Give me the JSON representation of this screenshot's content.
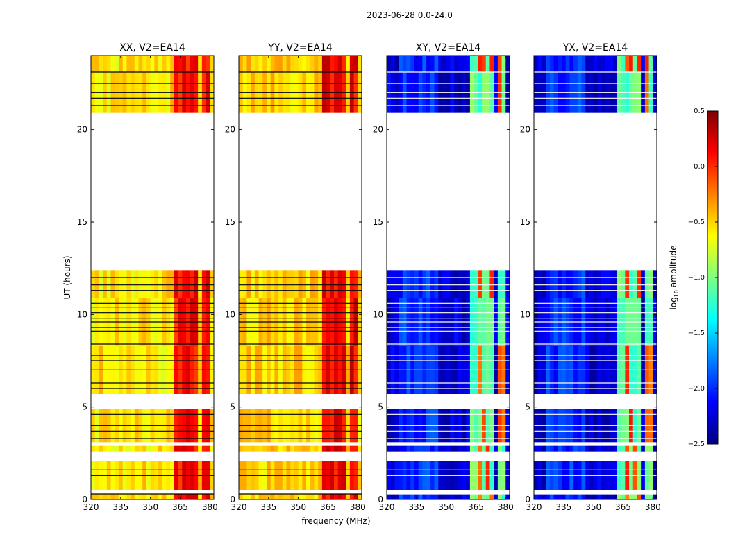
{
  "chart_data": {
    "type": "heatmap",
    "title": "2023-06-28 0.0-24.0",
    "xlabel": "frequency (MHz)",
    "ylabel": "UT (hours)",
    "xlim": [
      320,
      382
    ],
    "ylim": [
      0,
      24
    ],
    "x_ticks": [
      "320",
      "335",
      "350",
      "365",
      "380"
    ],
    "x_tick_values": [
      320,
      335,
      350,
      365,
      380
    ],
    "y_ticks": [
      "0",
      "5",
      "10",
      "15",
      "20"
    ],
    "y_tick_values": [
      0,
      5,
      10,
      15,
      20
    ],
    "bright_band_mhz": [
      [
        361.5,
        365.5
      ],
      [
        366.5,
        370.0
      ],
      [
        371.0,
        374.5
      ],
      [
        375.5,
        379.0
      ]
    ],
    "data_segments_ut": [
      [
        0.0,
        0.3
      ],
      [
        0.5,
        2.1
      ],
      [
        2.6,
        2.9
      ],
      [
        3.1,
        4.9
      ],
      [
        5.7,
        8.3
      ],
      [
        8.3,
        10.9
      ],
      [
        10.9,
        12.4
      ],
      [
        20.9,
        23.1
      ],
      [
        23.1,
        24.0
      ]
    ],
    "flagged_rows_ut": [
      0.3,
      1.3,
      1.6,
      3.3,
      3.7,
      4.0,
      4.6,
      6.0,
      6.3,
      7.0,
      7.5,
      7.8,
      8.4,
      9.1,
      9.3,
      9.6,
      9.8,
      10.1,
      10.4,
      10.6,
      11.3,
      11.6,
      12.0,
      21.3,
      21.7,
      22.0,
      22.5,
      23.1
    ],
    "panels": [
      {
        "title": "XX, V2=EA14",
        "base_level": -0.55,
        "band_level": 0.1
      },
      {
        "title": "YY, V2=EA14",
        "base_level": -0.5,
        "band_level": 0.15
      },
      {
        "title": "XY, V2=EA14",
        "base_level": -2.25,
        "band_level": -1.1
      },
      {
        "title": "YX, V2=EA14",
        "base_level": -2.25,
        "band_level": -1.1
      }
    ],
    "colorbar": {
      "label": "log10 amplitude",
      "label_main": "log",
      "label_sub": "10",
      "label_rest": " amplitude",
      "range": [
        -2.5,
        0.5
      ],
      "ticks": [
        "0.5",
        "0.0",
        "−0.5",
        "−1.0",
        "−1.5",
        "−2.0",
        "−2.5"
      ],
      "tick_values": [
        0.5,
        0.0,
        -0.5,
        -1.0,
        -1.5,
        -2.0,
        -2.5
      ],
      "colormap": [
        "#00007f",
        "#0000ff",
        "#007fff",
        "#00ffff",
        "#7fff7f",
        "#ffff00",
        "#ff7f00",
        "#ff0000",
        "#7f0000"
      ]
    }
  }
}
